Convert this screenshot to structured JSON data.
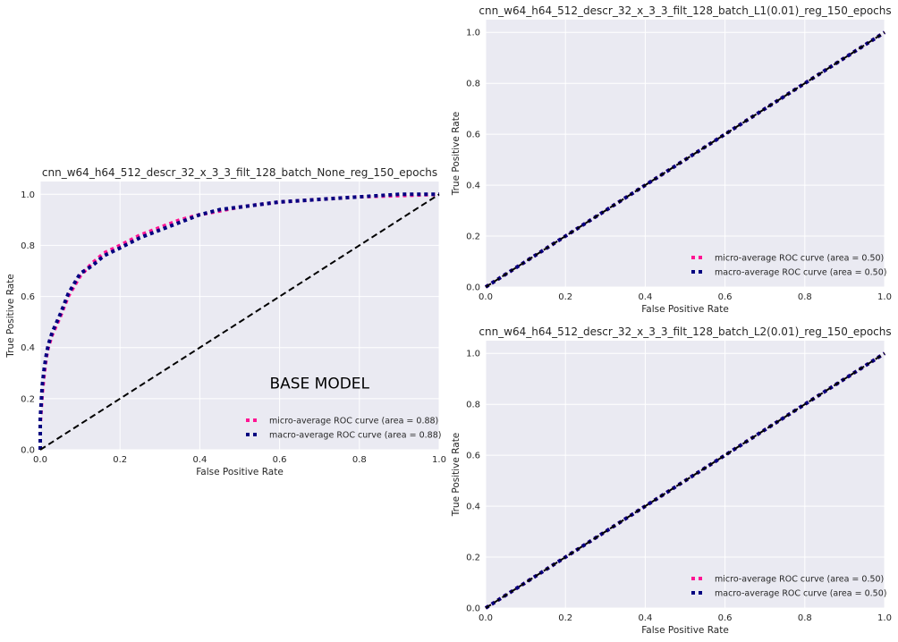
{
  "chart_data": [
    {
      "type": "line",
      "title": "cnn_w64_h64_512_descr_32_x_3_3_filt_128_batch_None_reg_150_epochs",
      "xlabel": "False Positive Rate",
      "ylabel": "True Positive Rate",
      "xlim": [
        0,
        1
      ],
      "ylim": [
        0,
        1.05
      ],
      "xticks": [
        "0.0",
        "0.2",
        "0.4",
        "0.6",
        "0.8",
        "1.0"
      ],
      "yticks": [
        "0.0",
        "0.2",
        "0.4",
        "0.6",
        "0.8",
        "1.0"
      ],
      "grid": true,
      "legend_position": "lower-right",
      "annotation": "BASE MODEL",
      "series": [
        {
          "name": "micro-average ROC curve (area = 0.88)",
          "color": "#ff1493",
          "style": "dotted",
          "x": [
            0,
            0,
            0.005,
            0.01,
            0.015,
            0.02,
            0.03,
            0.05,
            0.07,
            0.1,
            0.13,
            0.16,
            0.2,
            0.25,
            0.3,
            0.35,
            0.4,
            0.45,
            0.5,
            0.55,
            0.6,
            0.7,
            0.8,
            0.9,
            1.0
          ],
          "y": [
            0,
            0.1,
            0.22,
            0.3,
            0.36,
            0.4,
            0.45,
            0.52,
            0.6,
            0.68,
            0.73,
            0.77,
            0.8,
            0.84,
            0.87,
            0.9,
            0.92,
            0.935,
            0.95,
            0.96,
            0.97,
            0.98,
            0.99,
            0.995,
            1.0
          ]
        },
        {
          "name": "macro-average ROC curve (area = 0.88)",
          "color": "#000080",
          "style": "dotted",
          "x": [
            0,
            0,
            0.005,
            0.01,
            0.015,
            0.02,
            0.03,
            0.05,
            0.07,
            0.1,
            0.13,
            0.16,
            0.2,
            0.25,
            0.3,
            0.35,
            0.4,
            0.45,
            0.5,
            0.55,
            0.6,
            0.7,
            0.8,
            0.9,
            1.0
          ],
          "y": [
            0,
            0.12,
            0.25,
            0.32,
            0.37,
            0.41,
            0.46,
            0.53,
            0.61,
            0.69,
            0.72,
            0.76,
            0.79,
            0.83,
            0.86,
            0.89,
            0.92,
            0.94,
            0.95,
            0.96,
            0.97,
            0.98,
            0.99,
            1.0,
            1.0
          ]
        },
        {
          "color": "#000000",
          "style": "dashed",
          "x": [
            0,
            1
          ],
          "y": [
            0,
            1
          ]
        }
      ]
    },
    {
      "type": "line",
      "title": "cnn_w64_h64_512_descr_32_x_3_3_filt_128_batch_L1(0.01)_reg_150_epochs",
      "xlabel": "False Positive Rate",
      "ylabel": "True Positive Rate",
      "xlim": [
        0,
        1
      ],
      "ylim": [
        0,
        1.05
      ],
      "xticks": [
        "0.0",
        "0.2",
        "0.4",
        "0.6",
        "0.8",
        "1.0"
      ],
      "yticks": [
        "0.0",
        "0.2",
        "0.4",
        "0.6",
        "0.8",
        "1.0"
      ],
      "grid": true,
      "legend_position": "lower-right",
      "series": [
        {
          "name": "micro-average ROC curve (area = 0.50)",
          "color": "#ff1493",
          "style": "dotted",
          "x": [
            0,
            1
          ],
          "y": [
            0,
            1
          ]
        },
        {
          "name": "macro-average ROC curve (area = 0.50)",
          "color": "#000080",
          "style": "dotted",
          "x": [
            0,
            1
          ],
          "y": [
            0,
            1
          ]
        },
        {
          "color": "#000000",
          "style": "dashed",
          "x": [
            0,
            1
          ],
          "y": [
            0,
            1
          ]
        }
      ]
    },
    {
      "type": "line",
      "title": "cnn_w64_h64_512_descr_32_x_3_3_filt_128_batch_L2(0.01)_reg_150_epochs",
      "xlabel": "False Positive Rate",
      "ylabel": "True Positive Rate",
      "xlim": [
        0,
        1
      ],
      "ylim": [
        0,
        1.05
      ],
      "xticks": [
        "0.0",
        "0.2",
        "0.4",
        "0.6",
        "0.8",
        "1.0"
      ],
      "yticks": [
        "0.0",
        "0.2",
        "0.4",
        "0.6",
        "0.8",
        "1.0"
      ],
      "grid": true,
      "legend_position": "lower-right",
      "series": [
        {
          "name": "micro-average ROC curve (area = 0.50)",
          "color": "#ff1493",
          "style": "dotted",
          "x": [
            0,
            1
          ],
          "y": [
            0,
            1
          ]
        },
        {
          "name": "macro-average ROC curve (area = 0.50)",
          "color": "#000080",
          "style": "dotted",
          "x": [
            0,
            1
          ],
          "y": [
            0,
            1
          ]
        },
        {
          "color": "#000000",
          "style": "dashed",
          "x": [
            0,
            1
          ],
          "y": [
            0,
            1
          ]
        }
      ]
    }
  ],
  "colors": {
    "plot_background": "#eaeaf2",
    "grid": "#ffffff",
    "text": "#262626"
  }
}
